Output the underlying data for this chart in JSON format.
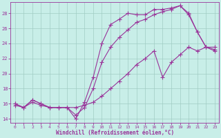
{
  "xlabel": "Windchill (Refroidissement éolien,°C)",
  "background_color": "#c8eee8",
  "grid_color": "#a0ccc4",
  "line_color": "#993399",
  "xlim": [
    -0.5,
    23.5
  ],
  "ylim": [
    13.5,
    29.5
  ],
  "yticks": [
    14,
    16,
    18,
    20,
    22,
    24,
    26,
    28
  ],
  "xticks": [
    0,
    1,
    2,
    3,
    4,
    5,
    6,
    7,
    8,
    9,
    10,
    11,
    12,
    13,
    14,
    15,
    16,
    17,
    18,
    19,
    20,
    21,
    22,
    23
  ],
  "line1_x": [
    0,
    1,
    2,
    3,
    4,
    5,
    6,
    7,
    8,
    9,
    10,
    11,
    12,
    13,
    14,
    15,
    16,
    17,
    18,
    19,
    20,
    21,
    22,
    23
  ],
  "line1_y": [
    16.0,
    15.5,
    16.5,
    16.0,
    15.5,
    15.5,
    15.5,
    14.0,
    16.2,
    19.5,
    24.0,
    26.5,
    27.2,
    28.0,
    27.8,
    27.8,
    28.5,
    28.5,
    28.7,
    29.0,
    28.0,
    25.5,
    23.5,
    23.2
  ],
  "line2_x": [
    0,
    1,
    2,
    3,
    4,
    5,
    6,
    7,
    8,
    9,
    10,
    11,
    12,
    13,
    14,
    15,
    16,
    17,
    18,
    19,
    20,
    21,
    22,
    23
  ],
  "line2_y": [
    16.0,
    15.5,
    16.5,
    16.0,
    15.5,
    15.5,
    15.5,
    14.5,
    15.5,
    18.0,
    21.5,
    23.5,
    24.8,
    25.8,
    26.8,
    27.2,
    27.8,
    28.2,
    28.5,
    29.0,
    27.8,
    25.5,
    23.5,
    23.0
  ],
  "line3_x": [
    0,
    1,
    2,
    3,
    4,
    5,
    6,
    7,
    8,
    9,
    10,
    11,
    12,
    13,
    14,
    15,
    16,
    17,
    18,
    19,
    20,
    21,
    22,
    23
  ],
  "line3_y": [
    15.8,
    15.5,
    16.2,
    15.8,
    15.5,
    15.5,
    15.5,
    15.5,
    15.8,
    16.2,
    17.0,
    18.0,
    19.0,
    20.0,
    21.2,
    22.0,
    23.0,
    19.5,
    21.5,
    22.5,
    23.5,
    23.0,
    23.5,
    23.5
  ]
}
